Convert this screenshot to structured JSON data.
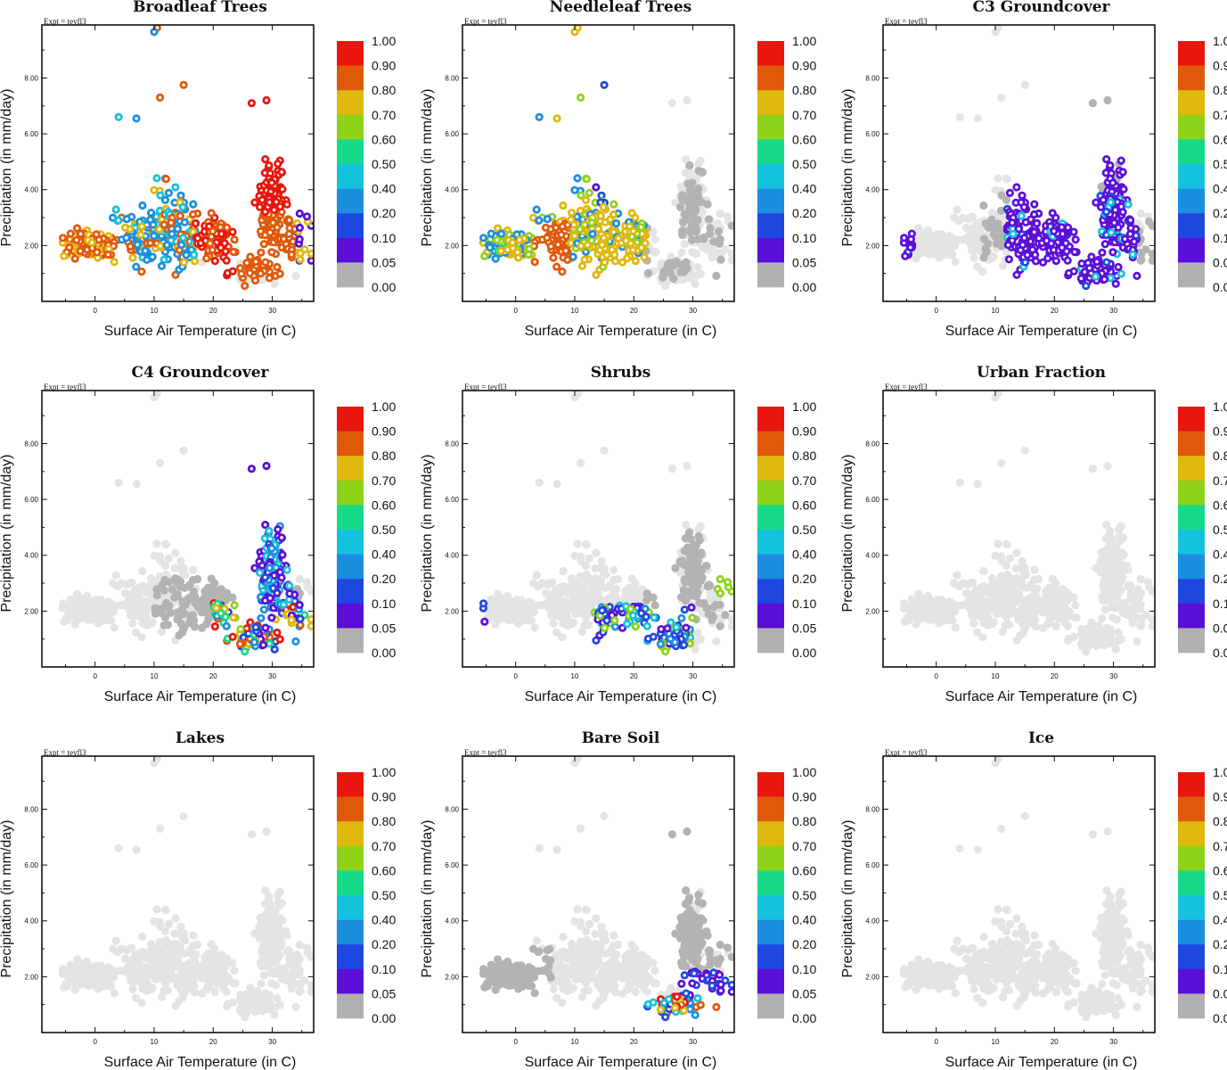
{
  "chart_data": {
    "type": "scatter",
    "layout": "3x3 small multiples",
    "expt_label": "Expt = teyfl3",
    "xlabel": "Surface Air Temperature (in C)",
    "ylabel": "Precipitation (in mm/day)",
    "xlim": [
      -9,
      37
    ],
    "ylim": [
      0,
      9.9
    ],
    "xticks": [
      "0",
      "10",
      "20",
      "30"
    ],
    "yticks": [
      "2.00",
      "4.00",
      "6.00",
      "8.00"
    ],
    "colorbar": {
      "labels": [
        "1.00",
        "0.90",
        "0.80",
        "0.70",
        "0.60",
        "0.50",
        "0.40",
        "0.20",
        "0.10",
        "0.05",
        "0.00"
      ],
      "colors": [
        "#e8160e",
        "#e0590a",
        "#dfb80d",
        "#8fd21a",
        "#17d98a",
        "#14c2dd",
        "#1b8ee0",
        "#1f48e0",
        "#5a0fd8",
        "#b0b0b0"
      ]
    },
    "background_color": "#e4e4e4",
    "zero_color": "#b3b3b3",
    "panels": [
      {
        "title": "Broadleaf Trees",
        "profile": "broadleaf"
      },
      {
        "title": "Needleleaf Trees",
        "profile": "needleleaf"
      },
      {
        "title": "C3 Groundcover",
        "profile": "c3"
      },
      {
        "title": "C4 Groundcover",
        "profile": "c4"
      },
      {
        "title": "Shrubs",
        "profile": "shrubs"
      },
      {
        "title": "Urban Fraction",
        "profile": "none"
      },
      {
        "title": "Lakes",
        "profile": "none"
      },
      {
        "title": "Bare Soil",
        "profile": "baresoil"
      },
      {
        "title": "Ice",
        "profile": "none"
      }
    ]
  }
}
